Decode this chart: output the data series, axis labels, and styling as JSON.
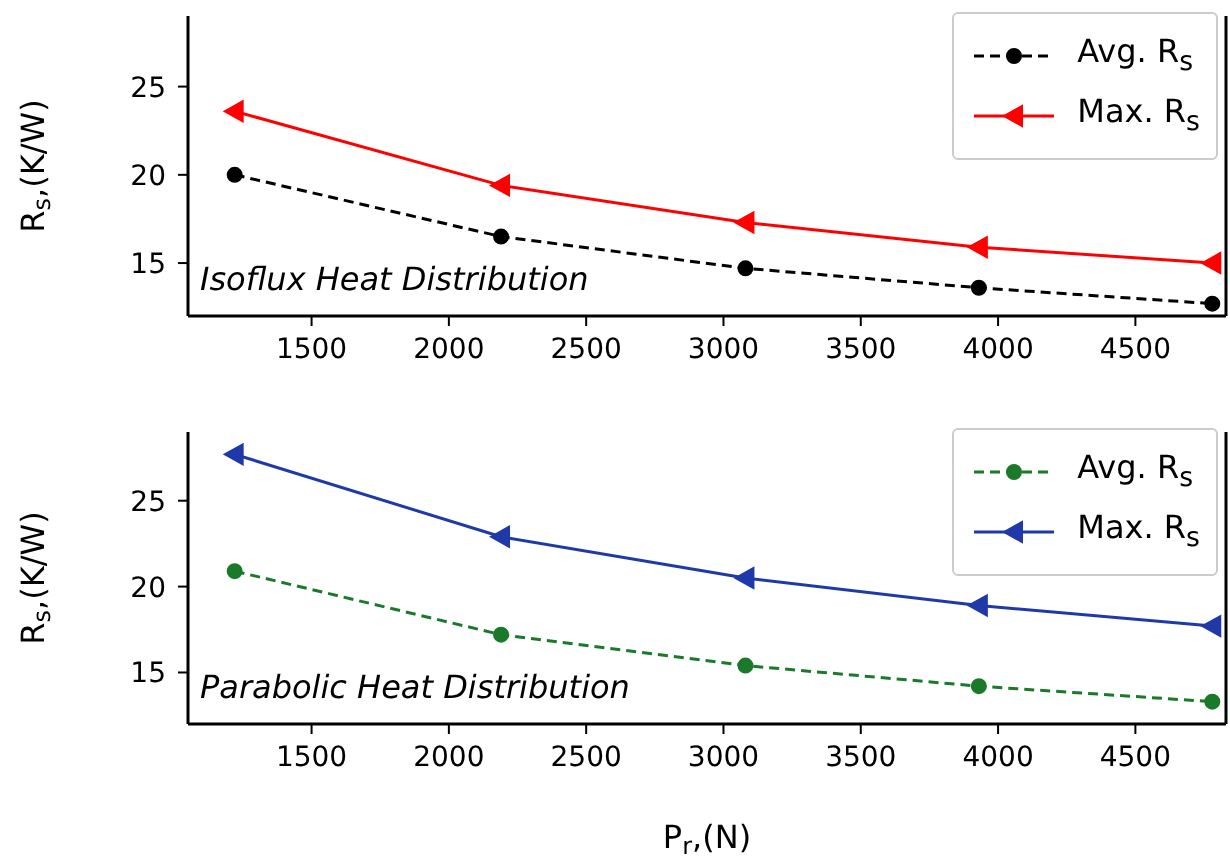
{
  "chart_data": [
    {
      "type": "line",
      "ylabel": "R$_{s}$,(K/W)",
      "x": [
        1220,
        2190,
        3080,
        3930,
        4780
      ],
      "xlim": [
        1050,
        4830
      ],
      "xticks": [
        1500,
        2000,
        2500,
        3000,
        3500,
        4000,
        4500
      ],
      "ylim": [
        12,
        29
      ],
      "yticks": [
        15,
        20,
        25
      ],
      "legend": "top right",
      "grid": false,
      "annotations": [
        "Isoflux Heat Distribution"
      ],
      "series": [
        {
          "name": "Avg. R$_{s}$",
          "color": "#000000",
          "marker": "circle",
          "line_style": "dashed",
          "values": [
            20.0,
            16.5,
            14.7,
            13.6,
            12.7
          ]
        },
        {
          "name": "Max. R$_{s}$",
          "color": "#ff0000",
          "marker": "triangle",
          "line_style": "solid",
          "values": [
            23.6,
            19.4,
            17.3,
            15.9,
            15.0
          ]
        }
      ]
    },
    {
      "type": "line",
      "xlabel": "P$_{r}$,(N)",
      "ylabel": "R$_{s}$,(K/W)",
      "x": [
        1220,
        2190,
        3080,
        3930,
        4780
      ],
      "xlim": [
        1050,
        4830
      ],
      "xticks": [
        1500,
        2000,
        2500,
        3000,
        3500,
        4000,
        4500
      ],
      "ylim": [
        12,
        29
      ],
      "yticks": [
        15,
        20,
        25
      ],
      "legend": "top right",
      "grid": false,
      "annotations": [
        "Parabolic Heat Distribution"
      ],
      "series": [
        {
          "name": "Avg. R$_{s}$",
          "color": "#1a7a2a",
          "marker": "circle",
          "line_style": "dashed",
          "values": [
            20.9,
            17.2,
            15.4,
            14.2,
            13.3
          ]
        },
        {
          "name": "Max. R$_{s}$",
          "color": "#1f3aa8",
          "marker": "triangle",
          "line_style": "solid",
          "values": [
            27.7,
            22.9,
            20.5,
            18.9,
            17.7
          ]
        }
      ]
    }
  ]
}
